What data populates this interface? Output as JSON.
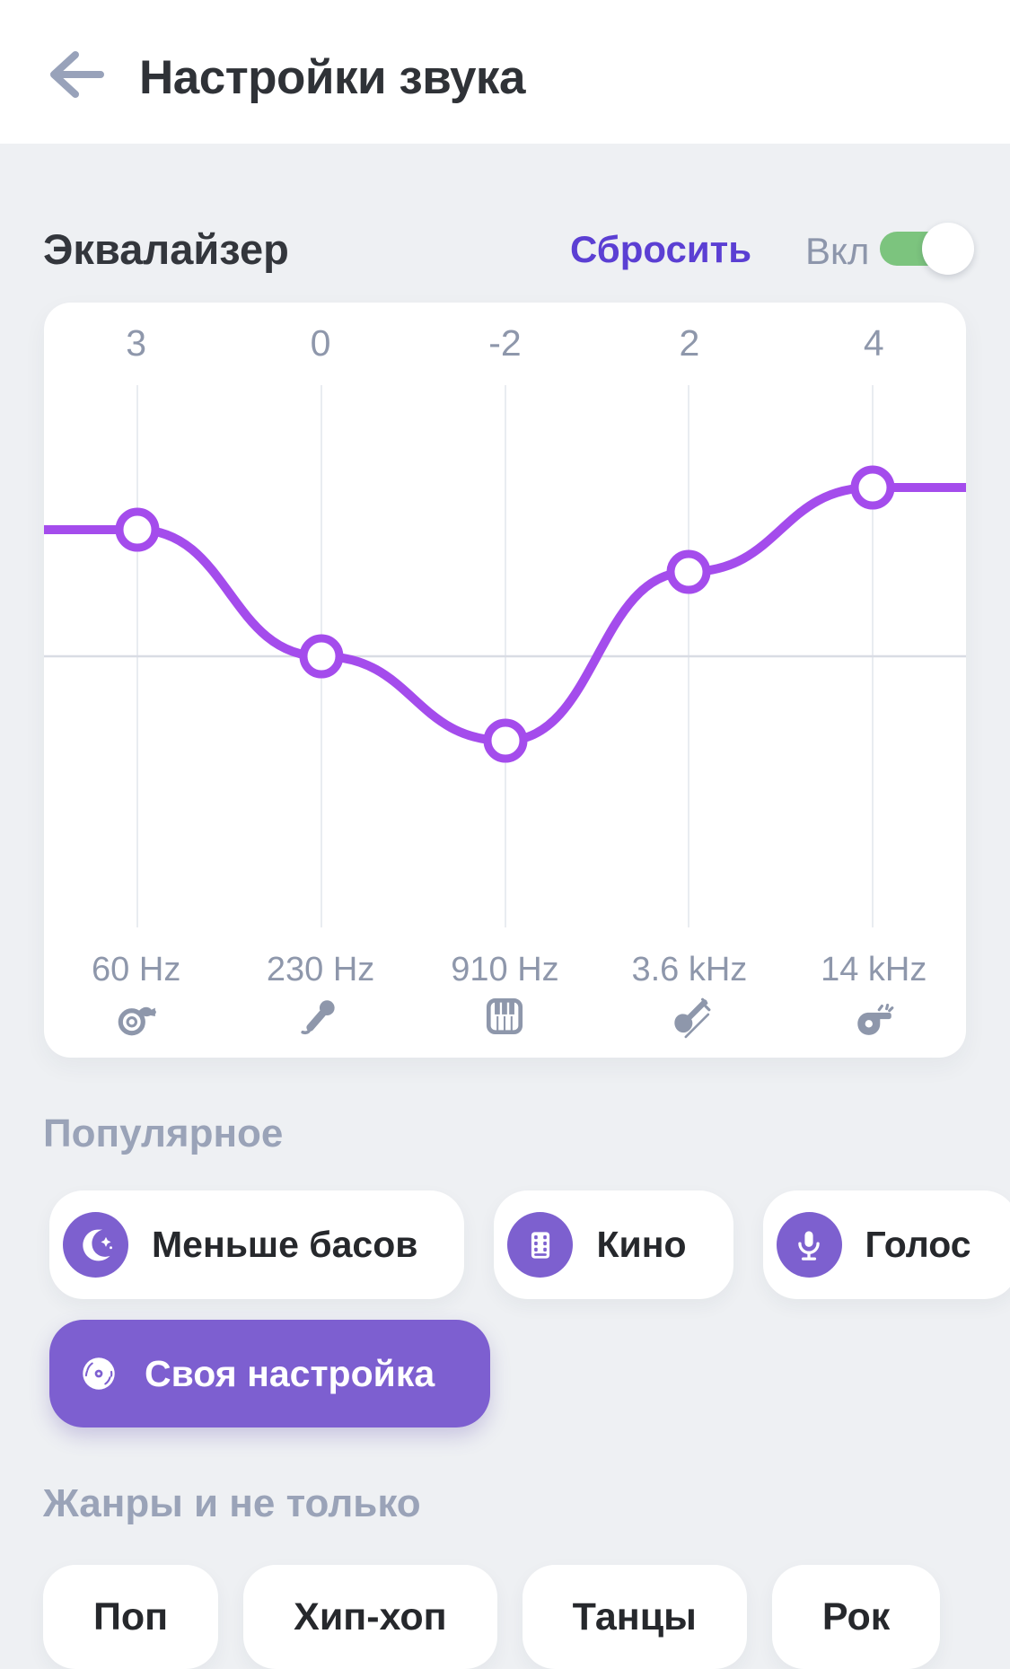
{
  "header": {
    "title": "Настройки звука"
  },
  "equalizer": {
    "title": "Эквалайзер",
    "reset_label": "Сбросить",
    "toggle_label": "Вкл",
    "toggle_state": "on",
    "bands": [
      {
        "freq": "60 Hz",
        "value": 3,
        "icon": "tuba-icon"
      },
      {
        "freq": "230 Hz",
        "value": 0,
        "icon": "microphone-icon"
      },
      {
        "freq": "910 Hz",
        "value": -2,
        "icon": "piano-icon"
      },
      {
        "freq": "3.6 kHz",
        "value": 2,
        "icon": "violin-icon"
      },
      {
        "freq": "14 kHz",
        "value": 4,
        "icon": "whistle-icon"
      }
    ]
  },
  "chart_data": {
    "type": "line",
    "x": [
      "60 Hz",
      "230 Hz",
      "910 Hz",
      "3.6 kHz",
      "14 kHz"
    ],
    "values": [
      3,
      0,
      -2,
      2,
      4
    ],
    "ylim": [
      -6.4,
      6.4
    ],
    "grid": "vertical-only-with-zero-line",
    "curve_color": "#a44cec"
  },
  "presets": {
    "title": "Популярное",
    "items": [
      {
        "label": "Меньше басов",
        "icon": "moon-icon",
        "selected": false
      },
      {
        "label": "Кино",
        "icon": "film-icon",
        "selected": false
      },
      {
        "label": "Голос",
        "icon": "voice-mic-icon",
        "selected": false
      },
      {
        "label": "Своя настройка",
        "icon": "vinyl-icon",
        "selected": true
      }
    ]
  },
  "genres": {
    "title": "Жанры и не только",
    "items": [
      {
        "label": "Поп"
      },
      {
        "label": "Хип-хоп"
      },
      {
        "label": "Танцы"
      },
      {
        "label": "Рок"
      }
    ]
  },
  "colors": {
    "background": "#eef0f3",
    "header_bg": "#ffffff",
    "curve": "#a44cec",
    "grid_line": "#e9ecf1",
    "zero_line": "#d9dce4",
    "label_gray": "#8e97ab",
    "heading_gray": "#9aa3b8",
    "accent_purple": "#7d5fd0",
    "reset_purple": "#5b3fd3",
    "toggle_green": "#7cc47e",
    "text_dark": "#26282c"
  }
}
